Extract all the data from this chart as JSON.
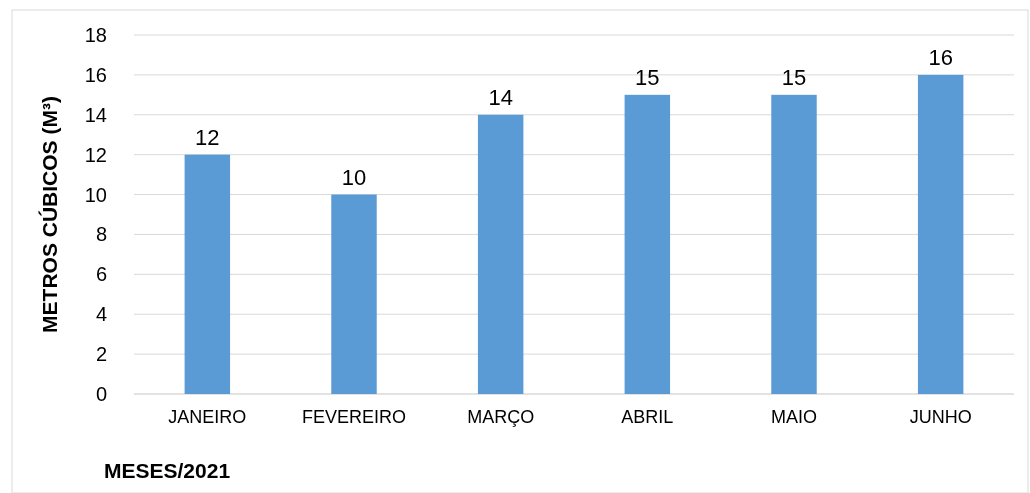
{
  "chart_data": {
    "type": "bar",
    "categories": [
      "JANEIRO",
      "FEVEREIRO",
      "MARÇO",
      "ABRIL",
      "MAIO",
      "JUNHO"
    ],
    "values": [
      12,
      10,
      14,
      15,
      15,
      16
    ],
    "color": "#5b9bd5",
    "ylim": [
      0,
      18
    ],
    "yticks": [
      0,
      2,
      4,
      6,
      8,
      10,
      12,
      14,
      16,
      18
    ],
    "grid": "y",
    "data_labels": true,
    "xlabel": "MESES/2021",
    "ylabel": "METROS CÚBICOS (M³)"
  }
}
